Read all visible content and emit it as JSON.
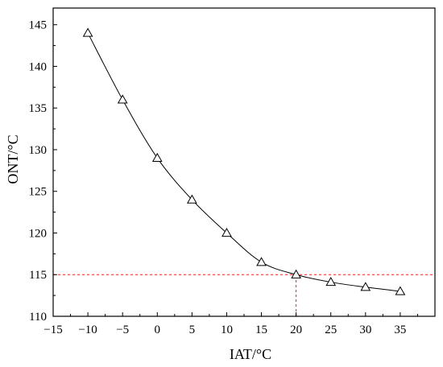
{
  "chart_data": {
    "type": "line",
    "title": "",
    "xlabel": "IAT/°C",
    "ylabel": "ONT/°C",
    "xlim": [
      -15,
      40
    ],
    "ylim": [
      110,
      147
    ],
    "xticks": [
      -15,
      -10,
      -5,
      0,
      5,
      10,
      15,
      20,
      25,
      30,
      35
    ],
    "yticks": [
      110,
      115,
      120,
      125,
      130,
      135,
      140,
      145
    ],
    "grid": false,
    "legend": "none",
    "series": [
      {
        "marker": "open-triangle",
        "color": "#000000",
        "x": [
          -10,
          -5,
          0,
          5,
          10,
          15,
          20,
          25,
          30,
          35
        ],
        "y": [
          144,
          136,
          129,
          124,
          120,
          116.5,
          115,
          114.1,
          113.5,
          113
        ]
      }
    ],
    "reference_lines": [
      {
        "orientation": "horizontal",
        "value": 115,
        "style": "dashed",
        "color": "#e8201f"
      },
      {
        "orientation": "vertical",
        "value": 20,
        "style": "dashed",
        "color": "#e8201f"
      }
    ]
  }
}
